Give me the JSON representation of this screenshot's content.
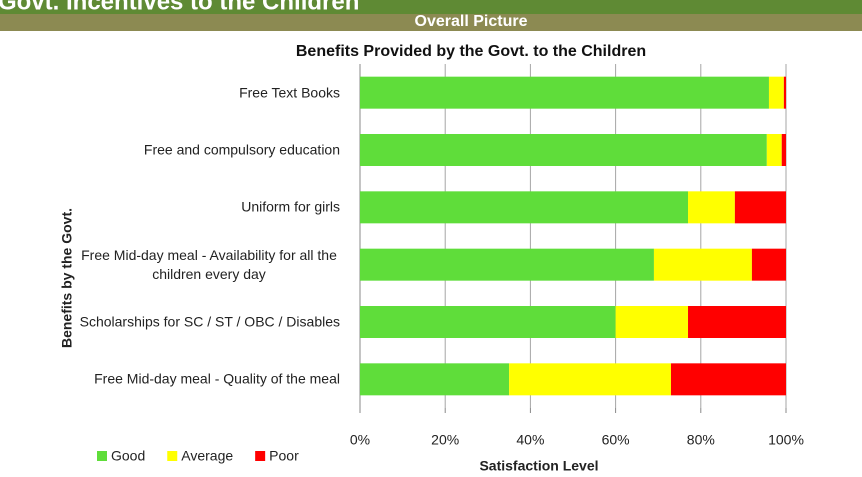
{
  "header": {
    "title": "Govt. Incentives to the Children",
    "subtitle": "Overall Picture"
  },
  "chart_data": {
    "type": "bar",
    "orientation": "horizontal",
    "stacked": true,
    "title": "Benefits Provided by the Govt. to the Children",
    "categories": [
      "Free Text Books",
      "Free and compulsory education",
      "Uniform for girls",
      "Free Mid-day meal - Availability for all the children every day",
      "Scholarships for SC / ST / OBC / Disables",
      "Free Mid-day meal - Quality of the meal"
    ],
    "series": [
      {
        "name": "Good",
        "color": "#5fdd3a",
        "values": [
          96,
          95.5,
          77,
          69,
          60,
          35
        ]
      },
      {
        "name": "Average",
        "color": "#ffff00",
        "values": [
          3.5,
          3.5,
          11,
          23,
          17,
          38
        ]
      },
      {
        "name": "Poor",
        "color": "#ff0000",
        "values": [
          0.5,
          1,
          12,
          8,
          23,
          27
        ]
      }
    ],
    "xlim": [
      0,
      100
    ],
    "xticks": [
      {
        "value": 0,
        "label": "0%"
      },
      {
        "value": 20,
        "label": "20%"
      },
      {
        "value": 40,
        "label": "40%"
      },
      {
        "value": 60,
        "label": "60%"
      },
      {
        "value": 80,
        "label": "80%"
      },
      {
        "value": 100,
        "label": "100%"
      }
    ],
    "xlabel": "Satisfaction Level",
    "ylabel": "Benefits by the Govt.",
    "grid": true,
    "legend": "bottom-left"
  }
}
